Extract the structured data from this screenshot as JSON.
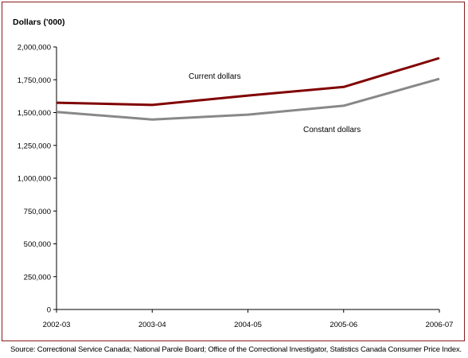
{
  "chart_data": {
    "type": "line",
    "ylabel": "Dollars ('000)",
    "categories": [
      "2002-03",
      "2003-04",
      "2004-05",
      "2005-06",
      "2006-07"
    ],
    "ylim": [
      0,
      2000000
    ],
    "yticks": [
      0,
      250000,
      500000,
      750000,
      1000000,
      1250000,
      1500000,
      1750000,
      2000000
    ],
    "ytick_labels": [
      "0",
      "250,000",
      "500,000",
      "750,000",
      "1,000,000",
      "1,250,000",
      "1,500,000",
      "1,750,000",
      "2,000,000"
    ],
    "grid": false,
    "series": [
      {
        "name": "Current dollars",
        "color": "#800000",
        "values": [
          1575000,
          1558000,
          1630000,
          1695000,
          1915000
        ]
      },
      {
        "name": "Constant dollars",
        "color": "#888888",
        "values": [
          1505000,
          1447000,
          1484000,
          1552000,
          1757000
        ]
      }
    ],
    "source": "Source: Correctional Service Canada; National Parole Board; Office of the Correctional Investigator, Statistics Canada Consumer Price Index."
  }
}
